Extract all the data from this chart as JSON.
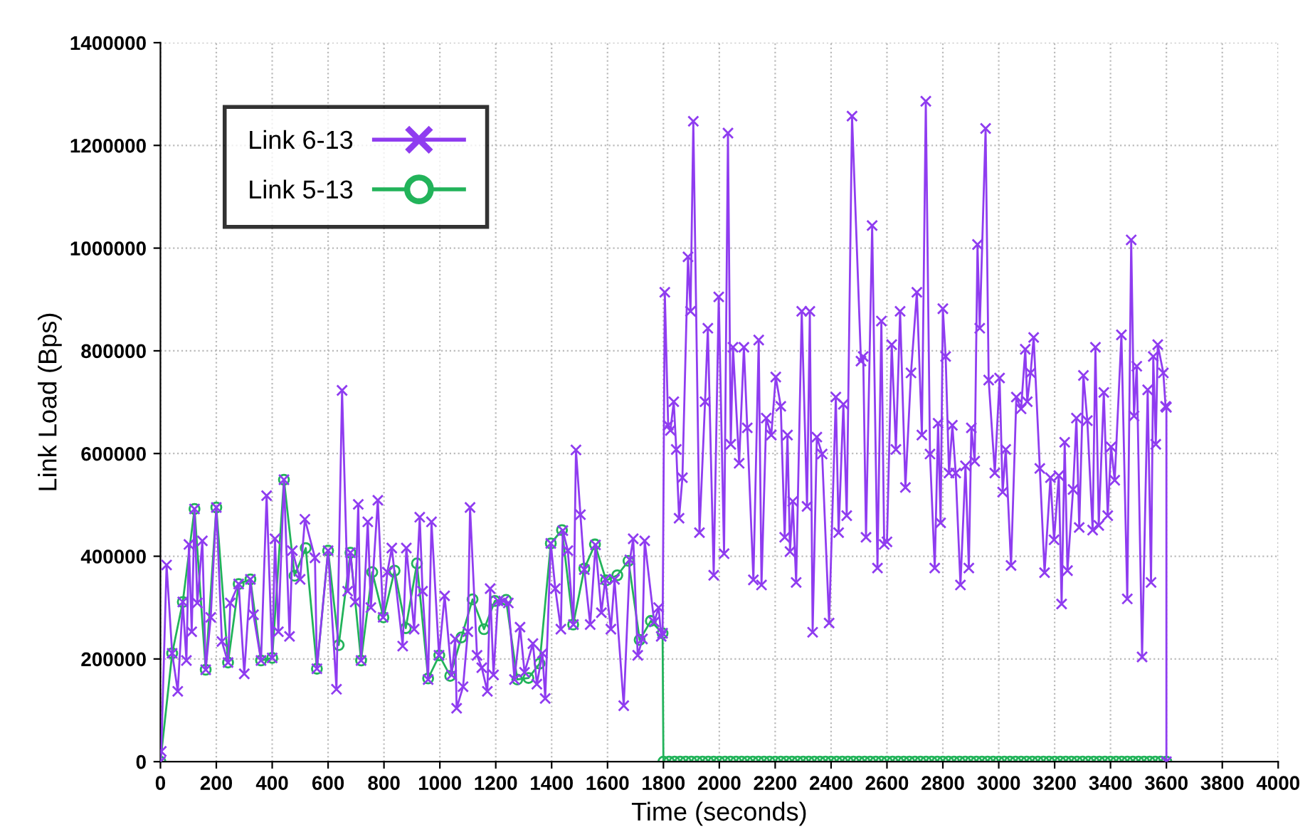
{
  "chart_data": {
    "type": "line",
    "xlabel": "Time (seconds)",
    "ylabel": "Link Load (Bps)",
    "xlim": [
      0,
      4000
    ],
    "xticks": [
      0,
      200,
      400,
      600,
      800,
      1000,
      1200,
      1400,
      1600,
      1800,
      2000,
      2200,
      2400,
      2600,
      2800,
      3000,
      3200,
      3400,
      3600,
      3800,
      4000
    ],
    "ylim": [
      0,
      1400000
    ],
    "yticks": [
      0,
      200000,
      400000,
      600000,
      800000,
      1000000,
      1200000,
      1400000
    ],
    "grid": true,
    "legend": "top left",
    "line_style": "solid",
    "series": [
      {
        "name": "Link 6-13",
        "color": "#8f3cf0",
        "marker": "cross",
        "x": [
          0,
          3,
          22,
          42,
          62,
          80,
          93,
          102,
          112,
          122,
          132,
          150,
          162,
          180,
          200,
          220,
          242,
          250,
          280,
          300,
          322,
          333,
          360,
          380,
          400,
          410,
          422,
          442,
          462,
          472,
          500,
          517,
          553,
          560,
          600,
          630,
          650,
          670,
          680,
          697,
          708,
          718,
          742,
          753,
          778,
          797,
          812,
          828,
          867,
          880,
          908,
          928,
          938,
          958,
          970,
          997,
          1017,
          1042,
          1055,
          1060,
          1083,
          1100,
          1108,
          1133,
          1150,
          1170,
          1180,
          1192,
          1208,
          1228,
          1245,
          1267,
          1287,
          1303,
          1333,
          1347,
          1367,
          1377,
          1397,
          1413,
          1433,
          1440,
          1458,
          1478,
          1487,
          1503,
          1517,
          1538,
          1557,
          1578,
          1592,
          1612,
          1625,
          1658,
          1680,
          1692,
          1708,
          1725,
          1733,
          1767,
          1783,
          1792,
          1797,
          1805,
          1817,
          1825,
          1837,
          1846,
          1856,
          1868,
          1888,
          1897,
          1907,
          1929,
          1949,
          1959,
          1980,
          1998,
          2017,
          2031,
          2041,
          2049,
          2071,
          2088,
          2100,
          2122,
          2141,
          2151,
          2168,
          2186,
          2202,
          2220,
          2234,
          2244,
          2253,
          2263,
          2275,
          2295,
          2314,
          2324,
          2334,
          2349,
          2368,
          2393,
          2417,
          2427,
          2444,
          2456,
          2475,
          2507,
          2515,
          2525,
          2547,
          2566,
          2580,
          2590,
          2600,
          2617,
          2632,
          2647,
          2666,
          2686,
          2707,
          2725,
          2739,
          2754,
          2771,
          2783,
          2792,
          2800,
          2810,
          2822,
          2834,
          2846,
          2863,
          2881,
          2893,
          2902,
          2914,
          2924,
          2932,
          2953,
          2964,
          2986,
          3003,
          3014,
          3025,
          3044,
          3063,
          3080,
          3095,
          3102,
          3114,
          3125,
          3147,
          3164,
          3185,
          3198,
          3215,
          3225,
          3236,
          3246,
          3266,
          3278,
          3288,
          3303,
          3317,
          3336,
          3346,
          3358,
          3376,
          3390,
          3402,
          3415,
          3439,
          3460,
          3474,
          3484,
          3494,
          3513,
          3533,
          3545,
          3553,
          3562,
          3569,
          3589,
          3597,
          3600,
          3600
        ],
        "values": [
          0,
          20000,
          383000,
          211000,
          137000,
          311000,
          197000,
          423000,
          253000,
          492000,
          309000,
          430000,
          179000,
          281000,
          495000,
          234000,
          193000,
          309000,
          346000,
          171000,
          355000,
          286000,
          197000,
          518000,
          202000,
          434000,
          253000,
          549000,
          244000,
          411000,
          355000,
          472000,
          397000,
          181000,
          411000,
          141000,
          723000,
          332000,
          407000,
          311000,
          501000,
          197000,
          467000,
          300000,
          509000,
          281000,
          369000,
          416000,
          225000,
          416000,
          258000,
          476000,
          332000,
          160000,
          467000,
          207000,
          323000,
          169000,
          239000,
          104000,
          146000,
          253000,
          495000,
          207000,
          183000,
          137000,
          337000,
          169000,
          313000,
          313000,
          309000,
          160000,
          262000,
          174000,
          230000,
          151000,
          211000,
          123000,
          425000,
          337000,
          258000,
          450000,
          411000,
          267000,
          607000,
          481000,
          374000,
          267000,
          422000,
          290000,
          355000,
          258000,
          355000,
          109000,
          393000,
          434000,
          207000,
          239000,
          430000,
          272000,
          300000,
          244000,
          250000,
          914000,
          655000,
          645000,
          701000,
          608000,
          474000,
          553000,
          983000,
          877000,
          1247000,
          446000,
          701000,
          844000,
          363000,
          905000,
          405000,
          1224000,
          618000,
          807000,
          581000,
          807000,
          650000,
          354000,
          821000,
          344000,
          669000,
          636000,
          749000,
          692000,
          437000,
          636000,
          409000,
          507000,
          349000,
          877000,
          497000,
          877000,
          252000,
          632000,
          599000,
          270000,
          710000,
          446000,
          696000,
          479000,
          1257000,
          780000,
          789000,
          437000,
          1044000,
          377000,
          858000,
          423000,
          428000,
          812000,
          608000,
          877000,
          534000,
          757000,
          914000,
          636000,
          1286000,
          599000,
          377000,
          659000,
          465000,
          882000,
          789000,
          562000,
          655000,
          562000,
          344000,
          576000,
          377000,
          650000,
          585000,
          1007000,
          844000,
          1233000,
          743000,
          562000,
          747000,
          525000,
          608000,
          382000,
          710000,
          687000,
          803000,
          701000,
          757000,
          826000,
          571000,
          368000,
          553000,
          432000,
          557000,
          307000,
          622000,
          372000,
          530000,
          669000,
          456000,
          752000,
          664000,
          451000,
          807000,
          460000,
          719000,
          479000,
          613000,
          548000,
          831000,
          317000,
          1016000,
          673000,
          770000,
          204000,
          724000,
          349000,
          789000,
          618000,
          812000,
          757000,
          692000,
          690000,
          0
        ]
      },
      {
        "name": "Link 5-13",
        "color": "#22b35a",
        "marker": "circle",
        "x": [
          0,
          42,
          80,
          122,
          162,
          200,
          242,
          280,
          322,
          360,
          400,
          442,
          480,
          520,
          560,
          600,
          638,
          680,
          718,
          758,
          798,
          838,
          878,
          918,
          958,
          998,
          1037,
          1077,
          1117,
          1158,
          1197,
          1237,
          1277,
          1317,
          1357,
          1397,
          1437,
          1477,
          1517,
          1555,
          1595,
          1635,
          1675,
          1715,
          1755,
          1797,
          1800,
          1820,
          1840,
          1860,
          1880,
          1900,
          1920,
          1940,
          1960,
          1980,
          2000,
          2020,
          2040,
          2060,
          2080,
          2100,
          2120,
          2140,
          2160,
          2180,
          2200,
          2220,
          2240,
          2260,
          2280,
          2300,
          2320,
          2340,
          2360,
          2380,
          2400,
          2420,
          2440,
          2460,
          2480,
          2500,
          2520,
          2540,
          2560,
          2580,
          2600,
          2620,
          2640,
          2660,
          2680,
          2700,
          2720,
          2740,
          2760,
          2780,
          2800,
          2820,
          2840,
          2860,
          2880,
          2900,
          2920,
          2940,
          2960,
          2980,
          3000,
          3020,
          3040,
          3060,
          3080,
          3100,
          3120,
          3140,
          3160,
          3180,
          3200,
          3220,
          3240,
          3260,
          3280,
          3300,
          3320,
          3340,
          3360,
          3380,
          3400,
          3420,
          3440,
          3460,
          3480,
          3500,
          3520,
          3540,
          3560,
          3580,
          3600
        ],
        "values": [
          0,
          211000,
          311000,
          492000,
          179000,
          495000,
          193000,
          346000,
          355000,
          197000,
          202000,
          549000,
          362000,
          416000,
          181000,
          411000,
          227000,
          407000,
          197000,
          369000,
          281000,
          372000,
          260000,
          386000,
          162000,
          207000,
          167000,
          242000,
          316000,
          258000,
          313000,
          315000,
          160000,
          163000,
          191000,
          425000,
          451000,
          267000,
          376000,
          423000,
          353000,
          363000,
          391000,
          237000,
          274000,
          250000,
          0,
          0,
          0,
          0,
          0,
          0,
          0,
          0,
          0,
          0,
          0,
          0,
          0,
          0,
          0,
          0,
          0,
          0,
          0,
          0,
          0,
          0,
          0,
          0,
          0,
          0,
          0,
          0,
          0,
          0,
          0,
          0,
          0,
          0,
          0,
          0,
          0,
          0,
          0,
          0,
          0,
          0,
          0,
          0,
          0,
          0,
          0,
          0,
          0,
          0,
          0,
          0,
          0,
          0,
          0,
          0,
          0,
          0,
          0,
          0,
          0,
          0,
          0,
          0,
          0,
          0,
          0,
          0,
          0,
          0,
          0,
          0,
          0,
          0,
          0,
          0,
          0,
          0,
          0,
          0,
          0,
          0,
          0,
          0,
          0,
          0,
          0,
          0,
          0,
          0,
          0
        ]
      }
    ]
  }
}
